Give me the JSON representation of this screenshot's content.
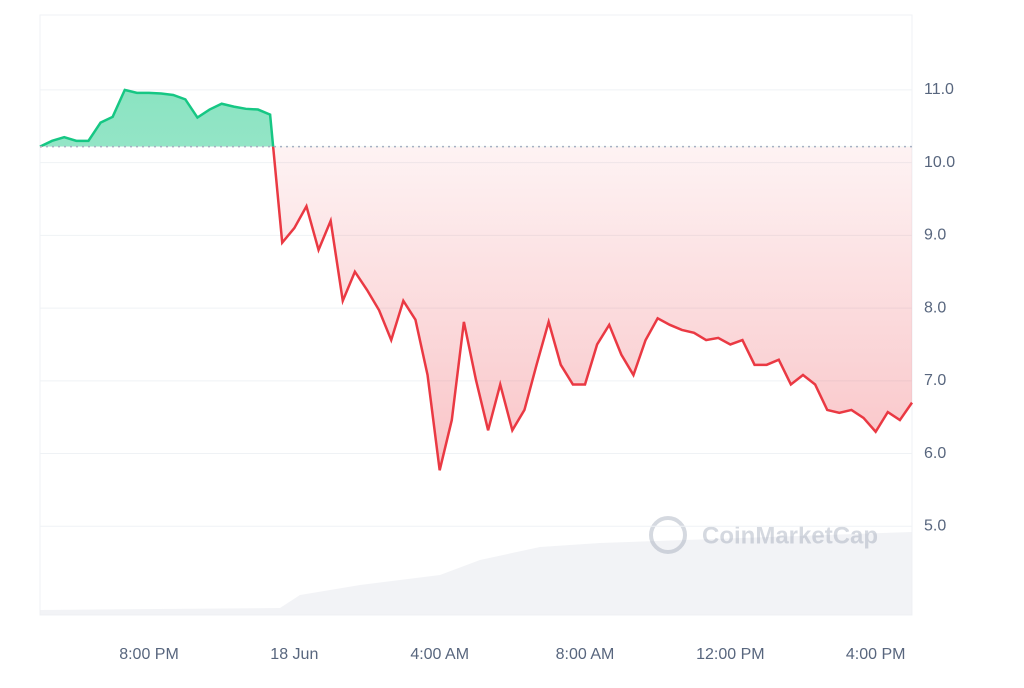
{
  "chart_data": {
    "type": "line",
    "watermark": "CoinMarketCap",
    "categories": [
      null,
      null,
      null,
      null,
      null,
      null,
      null,
      null,
      null,
      "8:00 PM",
      null,
      null,
      null,
      null,
      null,
      null,
      null,
      null,
      null,
      null,
      null,
      "18 Jun",
      null,
      null,
      null,
      null,
      null,
      null,
      null,
      null,
      null,
      null,
      null,
      "4:00 AM",
      null,
      null,
      null,
      null,
      null,
      null,
      null,
      null,
      null,
      null,
      null,
      "8:00 AM",
      null,
      null,
      null,
      null,
      null,
      null,
      null,
      null,
      null,
      null,
      null,
      "12:00 PM",
      null,
      null,
      null,
      null,
      null,
      null,
      null,
      null,
      null,
      null,
      null,
      "4:00 PM",
      null,
      null,
      null
    ],
    "series": [
      {
        "values": [
          10.22,
          10.3,
          10.35,
          10.3,
          10.3,
          10.55,
          10.63,
          11.0,
          10.96,
          10.96,
          10.95,
          10.93,
          10.87,
          10.62,
          10.73,
          10.81,
          10.77,
          10.74,
          10.73,
          10.66,
          8.9,
          9.1,
          9.4,
          8.8,
          9.2,
          8.1,
          8.5,
          8.25,
          7.97,
          7.56,
          8.1,
          7.84,
          7.08,
          5.77,
          6.46,
          7.81,
          7.01,
          6.32,
          6.95,
          6.32,
          6.6,
          7.22,
          7.81,
          7.22,
          6.95,
          6.95,
          7.5,
          7.77,
          7.36,
          7.08,
          7.56,
          7.86,
          7.77,
          7.7,
          7.66,
          7.56,
          7.59,
          7.5,
          7.56,
          7.22,
          7.22,
          7.29,
          6.95,
          7.08,
          6.95,
          6.6,
          6.56,
          6.6,
          6.49,
          6.3,
          6.57,
          6.46,
          6.7
        ]
      }
    ],
    "baseline": 10.22,
    "up_color": "#16c784",
    "down_color": "#ea3943",
    "ylim": [
      3.78,
      12.03
    ],
    "yticks": [
      {
        "value": 5,
        "label": "5.0"
      },
      {
        "value": 6,
        "label": "6.0"
      },
      {
        "value": 7,
        "label": "7.0"
      },
      {
        "value": 8,
        "label": "8.0"
      },
      {
        "value": 9,
        "label": "9.0"
      },
      {
        "value": 10,
        "label": "10.0"
      },
      {
        "value": 11,
        "label": "11.0"
      }
    ],
    "grid": true
  }
}
